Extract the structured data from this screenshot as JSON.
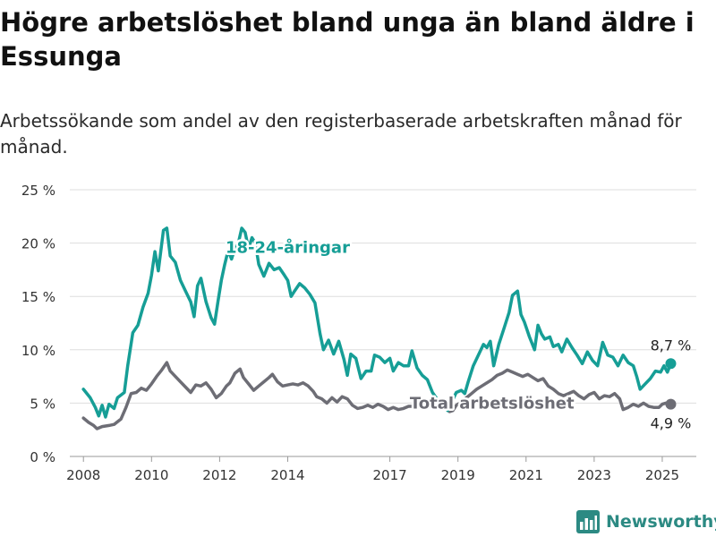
{
  "title": "Högre arbetslöshet bland unga än bland äldre i Essunga",
  "subtitle": "Arbetssökande som andel av den registerbaserade arbetskraften månad för månad.",
  "brand": {
    "name": "Newsworthy",
    "icon": "newsworthy-logo-icon",
    "color": "#2c8a83"
  },
  "chart_data": {
    "type": "line",
    "x_unit": "year",
    "ylim": [
      0,
      25
    ],
    "xlim": [
      2007.6,
      2026.0
    ],
    "y_ticks": [
      0,
      5,
      10,
      15,
      20,
      25
    ],
    "y_tick_labels": [
      "0 %",
      "5 %",
      "10 %",
      "15 %",
      "20 %",
      "25 %"
    ],
    "x_ticks": [
      2008,
      2010,
      2012,
      2014,
      2017,
      2019,
      2021,
      2023,
      2025
    ],
    "x_tick_labels": [
      "2008",
      "2010",
      "2012",
      "2014",
      "2017",
      "2019",
      "2021",
      "2023",
      "2025"
    ],
    "grid": "horizontal",
    "series": [
      {
        "name": "18-24-åringar",
        "color": "#169e96",
        "last_value_label": "8,7 %",
        "points": [
          [
            2008.0,
            6.3
          ],
          [
            2008.2,
            5.5
          ],
          [
            2008.35,
            4.6
          ],
          [
            2008.45,
            3.8
          ],
          [
            2008.55,
            4.8
          ],
          [
            2008.65,
            3.7
          ],
          [
            2008.75,
            4.9
          ],
          [
            2008.9,
            4.5
          ],
          [
            2009.0,
            5.5
          ],
          [
            2009.2,
            6.0
          ],
          [
            2009.3,
            8.5
          ],
          [
            2009.45,
            11.6
          ],
          [
            2009.6,
            12.3
          ],
          [
            2009.75,
            14.0
          ],
          [
            2009.9,
            15.3
          ],
          [
            2010.0,
            17.0
          ],
          [
            2010.1,
            19.2
          ],
          [
            2010.2,
            17.4
          ],
          [
            2010.35,
            21.2
          ],
          [
            2010.45,
            21.4
          ],
          [
            2010.55,
            18.8
          ],
          [
            2010.7,
            18.2
          ],
          [
            2010.85,
            16.5
          ],
          [
            2011.0,
            15.5
          ],
          [
            2011.15,
            14.5
          ],
          [
            2011.25,
            13.1
          ],
          [
            2011.35,
            16.0
          ],
          [
            2011.45,
            16.7
          ],
          [
            2011.6,
            14.5
          ],
          [
            2011.75,
            13.0
          ],
          [
            2011.85,
            12.4
          ],
          [
            2011.95,
            14.5
          ],
          [
            2012.05,
            16.5
          ],
          [
            2012.15,
            18.0
          ],
          [
            2012.25,
            19.3
          ],
          [
            2012.35,
            18.5
          ],
          [
            2012.45,
            19.5
          ],
          [
            2012.55,
            20.0
          ],
          [
            2012.65,
            21.4
          ],
          [
            2012.75,
            21.0
          ],
          [
            2012.85,
            19.5
          ],
          [
            2012.95,
            20.5
          ],
          [
            2013.05,
            20.0
          ],
          [
            2013.15,
            18.0
          ],
          [
            2013.3,
            16.9
          ],
          [
            2013.45,
            18.1
          ],
          [
            2013.6,
            17.5
          ],
          [
            2013.75,
            17.7
          ],
          [
            2013.9,
            17.0
          ],
          [
            2014.0,
            16.5
          ],
          [
            2014.1,
            15.0
          ],
          [
            2014.2,
            15.5
          ],
          [
            2014.35,
            16.2
          ],
          [
            2014.5,
            15.8
          ],
          [
            2014.65,
            15.2
          ],
          [
            2014.8,
            14.4
          ],
          [
            2014.95,
            11.5
          ],
          [
            2015.05,
            10.0
          ],
          [
            2015.2,
            10.9
          ],
          [
            2015.35,
            9.6
          ],
          [
            2015.5,
            10.8
          ],
          [
            2015.65,
            9.1
          ],
          [
            2015.75,
            7.6
          ],
          [
            2015.85,
            9.6
          ],
          [
            2016.0,
            9.2
          ],
          [
            2016.15,
            7.3
          ],
          [
            2016.3,
            8.0
          ],
          [
            2016.45,
            8.0
          ],
          [
            2016.55,
            9.5
          ],
          [
            2016.7,
            9.3
          ],
          [
            2016.85,
            8.8
          ],
          [
            2017.0,
            9.2
          ],
          [
            2017.1,
            8.0
          ],
          [
            2017.25,
            8.8
          ],
          [
            2017.4,
            8.5
          ],
          [
            2017.55,
            8.5
          ],
          [
            2017.65,
            9.9
          ],
          [
            2017.8,
            8.3
          ],
          [
            2017.95,
            7.6
          ],
          [
            2018.1,
            7.2
          ],
          [
            2018.25,
            6.0
          ],
          [
            2018.4,
            5.3
          ],
          [
            2018.55,
            5.0
          ],
          [
            2018.7,
            4.3
          ],
          [
            2018.8,
            5.0
          ],
          [
            2018.95,
            6.0
          ],
          [
            2019.1,
            6.2
          ],
          [
            2019.2,
            5.9
          ],
          [
            2019.3,
            7.0
          ],
          [
            2019.45,
            8.5
          ],
          [
            2019.6,
            9.5
          ],
          [
            2019.75,
            10.5
          ],
          [
            2019.85,
            10.2
          ],
          [
            2019.95,
            10.8
          ],
          [
            2020.05,
            8.5
          ],
          [
            2020.2,
            10.5
          ],
          [
            2020.35,
            12.0
          ],
          [
            2020.5,
            13.5
          ],
          [
            2020.6,
            15.1
          ],
          [
            2020.75,
            15.5
          ],
          [
            2020.85,
            13.3
          ],
          [
            2020.95,
            12.6
          ],
          [
            2021.1,
            11.2
          ],
          [
            2021.25,
            10.0
          ],
          [
            2021.35,
            12.3
          ],
          [
            2021.45,
            11.5
          ],
          [
            2021.55,
            11.0
          ],
          [
            2021.7,
            11.2
          ],
          [
            2021.8,
            10.3
          ],
          [
            2021.95,
            10.5
          ],
          [
            2022.05,
            9.8
          ],
          [
            2022.2,
            11.0
          ],
          [
            2022.35,
            10.2
          ],
          [
            2022.5,
            9.5
          ],
          [
            2022.65,
            8.7
          ],
          [
            2022.8,
            9.8
          ],
          [
            2022.95,
            9.0
          ],
          [
            2023.1,
            8.5
          ],
          [
            2023.25,
            10.7
          ],
          [
            2023.4,
            9.5
          ],
          [
            2023.55,
            9.3
          ],
          [
            2023.7,
            8.5
          ],
          [
            2023.85,
            9.5
          ],
          [
            2024.0,
            8.8
          ],
          [
            2024.15,
            8.5
          ],
          [
            2024.25,
            7.5
          ],
          [
            2024.35,
            6.3
          ],
          [
            2024.5,
            6.8
          ],
          [
            2024.65,
            7.3
          ],
          [
            2024.8,
            8.0
          ],
          [
            2024.95,
            7.9
          ],
          [
            2025.05,
            8.5
          ],
          [
            2025.15,
            7.9
          ],
          [
            2025.25,
            8.7
          ]
        ]
      },
      {
        "name": "Total arbetslöshet",
        "color": "#6d6d75",
        "last_value_label": "4,9 %",
        "points": [
          [
            2008.0,
            3.6
          ],
          [
            2008.15,
            3.2
          ],
          [
            2008.3,
            2.9
          ],
          [
            2008.4,
            2.6
          ],
          [
            2008.55,
            2.8
          ],
          [
            2008.75,
            2.9
          ],
          [
            2008.9,
            3.0
          ],
          [
            2009.1,
            3.5
          ],
          [
            2009.25,
            4.6
          ],
          [
            2009.4,
            5.9
          ],
          [
            2009.55,
            6.0
          ],
          [
            2009.7,
            6.4
          ],
          [
            2009.85,
            6.2
          ],
          [
            2010.0,
            6.8
          ],
          [
            2010.15,
            7.5
          ],
          [
            2010.3,
            8.1
          ],
          [
            2010.45,
            8.8
          ],
          [
            2010.55,
            8.0
          ],
          [
            2010.7,
            7.5
          ],
          [
            2010.85,
            7.0
          ],
          [
            2011.0,
            6.5
          ],
          [
            2011.15,
            6.0
          ],
          [
            2011.3,
            6.7
          ],
          [
            2011.45,
            6.6
          ],
          [
            2011.6,
            6.9
          ],
          [
            2011.75,
            6.3
          ],
          [
            2011.9,
            5.5
          ],
          [
            2012.05,
            5.9
          ],
          [
            2012.2,
            6.6
          ],
          [
            2012.3,
            6.9
          ],
          [
            2012.45,
            7.8
          ],
          [
            2012.6,
            8.2
          ],
          [
            2012.7,
            7.4
          ],
          [
            2012.85,
            6.8
          ],
          [
            2013.0,
            6.2
          ],
          [
            2013.15,
            6.6
          ],
          [
            2013.3,
            7.0
          ],
          [
            2013.45,
            7.4
          ],
          [
            2013.55,
            7.7
          ],
          [
            2013.7,
            7.0
          ],
          [
            2013.85,
            6.6
          ],
          [
            2014.0,
            6.7
          ],
          [
            2014.15,
            6.8
          ],
          [
            2014.3,
            6.7
          ],
          [
            2014.45,
            6.9
          ],
          [
            2014.6,
            6.6
          ],
          [
            2014.75,
            6.1
          ],
          [
            2014.85,
            5.6
          ],
          [
            2015.0,
            5.4
          ],
          [
            2015.15,
            5.0
          ],
          [
            2015.3,
            5.5
          ],
          [
            2015.45,
            5.1
          ],
          [
            2015.6,
            5.6
          ],
          [
            2015.75,
            5.4
          ],
          [
            2015.9,
            4.8
          ],
          [
            2016.05,
            4.5
          ],
          [
            2016.2,
            4.6
          ],
          [
            2016.35,
            4.8
          ],
          [
            2016.5,
            4.6
          ],
          [
            2016.65,
            4.9
          ],
          [
            2016.8,
            4.7
          ],
          [
            2016.95,
            4.4
          ],
          [
            2017.1,
            4.6
          ],
          [
            2017.25,
            4.4
          ],
          [
            2017.4,
            4.5
          ],
          [
            2017.55,
            4.7
          ],
          [
            2017.7,
            4.7
          ],
          [
            2017.85,
            5.0
          ],
          [
            2018.0,
            5.2
          ],
          [
            2018.15,
            5.1
          ],
          [
            2018.3,
            4.9
          ],
          [
            2018.45,
            4.9
          ],
          [
            2018.6,
            4.6
          ],
          [
            2018.75,
            4.2
          ],
          [
            2018.85,
            4.3
          ],
          [
            2018.95,
            4.8
          ],
          [
            2019.1,
            5.1
          ],
          [
            2019.25,
            5.5
          ],
          [
            2019.4,
            5.9
          ],
          [
            2019.55,
            6.3
          ],
          [
            2019.7,
            6.6
          ],
          [
            2019.85,
            6.9
          ],
          [
            2020.0,
            7.2
          ],
          [
            2020.15,
            7.6
          ],
          [
            2020.3,
            7.8
          ],
          [
            2020.45,
            8.1
          ],
          [
            2020.6,
            7.9
          ],
          [
            2020.75,
            7.7
          ],
          [
            2020.9,
            7.5
          ],
          [
            2021.05,
            7.7
          ],
          [
            2021.2,
            7.4
          ],
          [
            2021.35,
            7.1
          ],
          [
            2021.5,
            7.3
          ],
          [
            2021.65,
            6.6
          ],
          [
            2021.8,
            6.3
          ],
          [
            2021.95,
            5.9
          ],
          [
            2022.1,
            5.7
          ],
          [
            2022.25,
            5.9
          ],
          [
            2022.4,
            6.1
          ],
          [
            2022.55,
            5.7
          ],
          [
            2022.7,
            5.4
          ],
          [
            2022.85,
            5.8
          ],
          [
            2023.0,
            6.0
          ],
          [
            2023.15,
            5.4
          ],
          [
            2023.3,
            5.7
          ],
          [
            2023.45,
            5.6
          ],
          [
            2023.6,
            5.9
          ],
          [
            2023.75,
            5.4
          ],
          [
            2023.85,
            4.4
          ],
          [
            2024.0,
            4.6
          ],
          [
            2024.15,
            4.9
          ],
          [
            2024.3,
            4.7
          ],
          [
            2024.45,
            5.0
          ],
          [
            2024.6,
            4.7
          ],
          [
            2024.75,
            4.6
          ],
          [
            2024.9,
            4.6
          ],
          [
            2025.0,
            4.9
          ],
          [
            2025.1,
            5.0
          ],
          [
            2025.25,
            4.9
          ]
        ]
      }
    ]
  }
}
